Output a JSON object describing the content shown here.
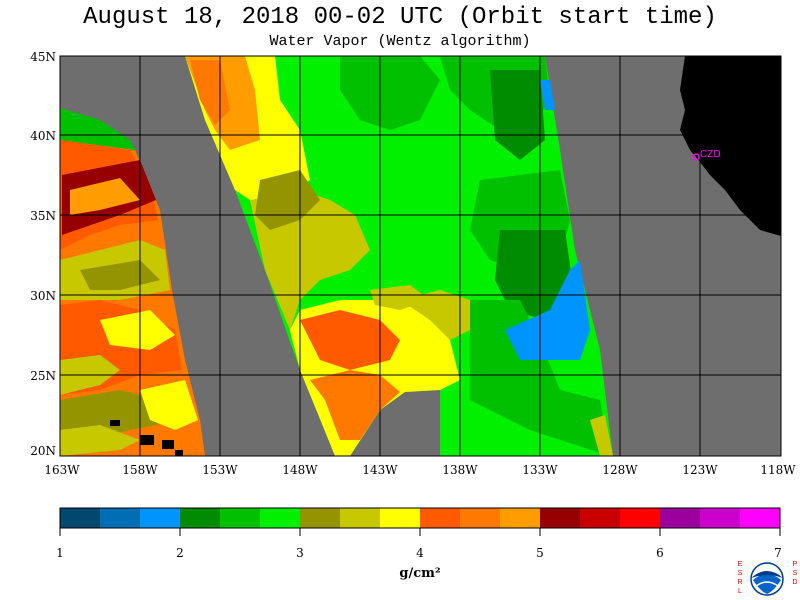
{
  "title": "August 18, 2018  00-02 UTC  (Orbit start time)",
  "subtitle": "Water Vapor (Wentz algorithm)",
  "map": {
    "lat_labels": [
      "45N",
      "40N",
      "35N",
      "30N",
      "25N",
      "20N"
    ],
    "lon_labels": [
      "163W",
      "158W",
      "153W",
      "148W",
      "143W",
      "138W",
      "133W",
      "128W",
      "123W",
      "118W"
    ],
    "station_label": "CZD",
    "colors": {
      "no_data": "#6e6e6e",
      "land": "#000000",
      "station": "#ff00ff"
    }
  },
  "colorbar": {
    "tick_labels": [
      "1",
      "2",
      "3",
      "4",
      "5",
      "6",
      "7"
    ],
    "unit_label": "g/cm²",
    "colors": [
      "#00486e",
      "#006eb4",
      "#0094ff",
      "#008c00",
      "#00c000",
      "#00f000",
      "#949400",
      "#c8c800",
      "#ffff00",
      "#ff5a00",
      "#ff7800",
      "#ff9c00",
      "#960000",
      "#c80000",
      "#ff0000",
      "#9c009c",
      "#cc00cc",
      "#ff00ff"
    ]
  },
  "logos": {
    "left_letters": "ESRL",
    "right_letters": "PSD",
    "center_text": "NOAA"
  }
}
